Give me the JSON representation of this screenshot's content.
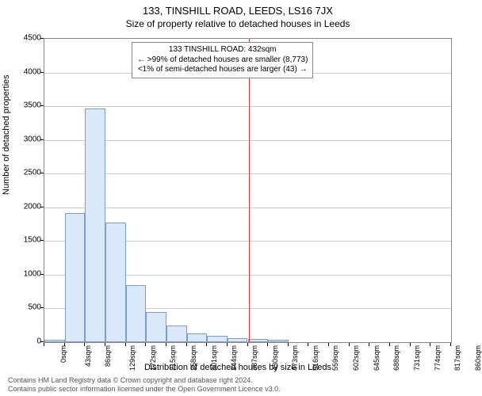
{
  "title_main": "133, TINSHILL ROAD, LEEDS, LS16 7JX",
  "title_sub": "Size of property relative to detached houses in Leeds",
  "y_axis": {
    "label": "Number of detached properties",
    "min": 0,
    "max": 4500,
    "step": 500,
    "ticks": [
      0,
      500,
      1000,
      1500,
      2000,
      2500,
      3000,
      3500,
      4000,
      4500
    ]
  },
  "x_axis": {
    "label": "Distribution of detached houses by size in Leeds",
    "ticks": [
      "0sqm",
      "43sqm",
      "86sqm",
      "129sqm",
      "172sqm",
      "215sqm",
      "258sqm",
      "301sqm",
      "344sqm",
      "387sqm",
      "430sqm",
      "473sqm",
      "516sqm",
      "559sqm",
      "602sqm",
      "645sqm",
      "688sqm",
      "731sqm",
      "774sqm",
      "817sqm",
      "860sqm"
    ]
  },
  "chart": {
    "type": "histogram",
    "bar_fill": "#dbe8f9",
    "bar_stroke": "#7a9dc9",
    "background": "#ffffff",
    "grid_color": "#cccccc",
    "values": [
      30,
      1920,
      3470,
      1770,
      850,
      450,
      250,
      130,
      90,
      60,
      50,
      30,
      0,
      0,
      0,
      0,
      0,
      0,
      0,
      0
    ],
    "n_bars": 20
  },
  "reference": {
    "xpos_sqm": 432,
    "color": "#d04040",
    "legend_lines": [
      "133 TINSHILL ROAD: 432sqm",
      "← >99% of detached houses are smaller (8,773)",
      "<1% of semi-detached houses are larger (43) →"
    ]
  },
  "footer": {
    "line1": "Contains HM Land Registry data © Crown copyright and database right 2024.",
    "line2": "Contains public sector information licensed under the Open Government Licence v3.0."
  },
  "fonts": {
    "title_size": 13,
    "subtitle_size": 12,
    "axis_label_size": 11,
    "tick_size": 10,
    "legend_size": 10,
    "footer_size": 9
  }
}
